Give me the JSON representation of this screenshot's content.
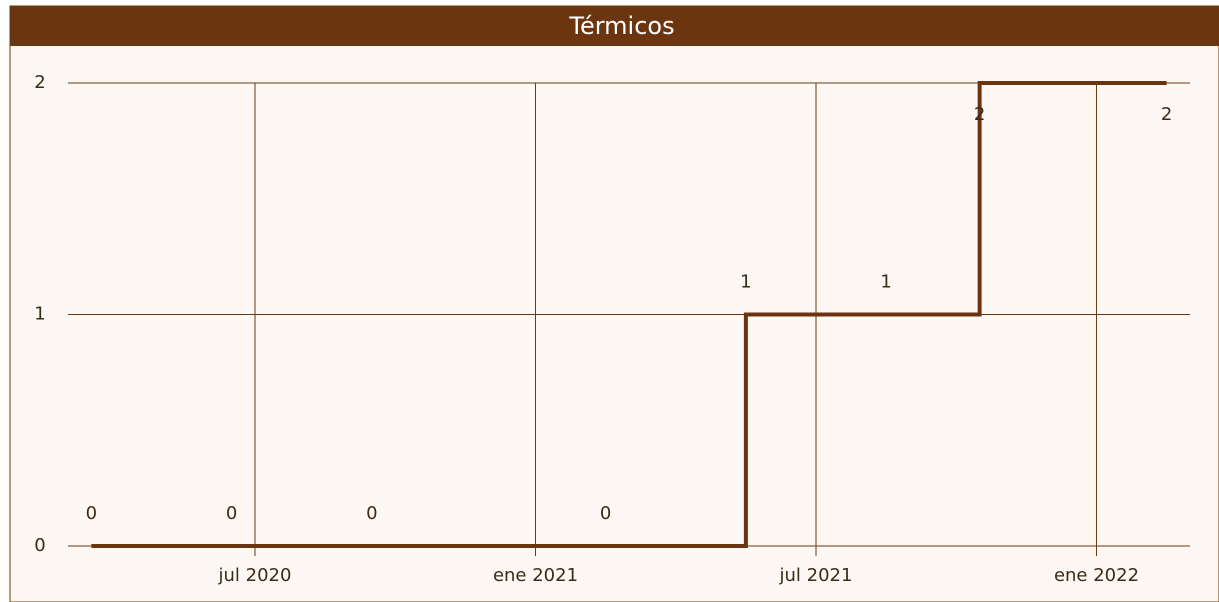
{
  "chart_data": {
    "type": "step",
    "title": "Térmicos",
    "x": [
      "2020-03",
      "2020-06",
      "2020-09",
      "2021-02",
      "2021-05",
      "2021-08",
      "2021-10",
      "2022-02"
    ],
    "values": [
      0,
      0,
      0,
      0,
      1,
      1,
      2,
      2
    ],
    "color": "#6b3410",
    "xlim": [
      "2020-03",
      "2022-03"
    ],
    "xticks": [
      {
        "value": "2020-07",
        "label": "jul 2020"
      },
      {
        "value": "2021-01",
        "label": "ene 2021"
      },
      {
        "value": "2021-07",
        "label": "jul 2021"
      },
      {
        "value": "2022-01",
        "label": "ene 2022"
      }
    ],
    "ylim": [
      0,
      2
    ],
    "yticks": [
      0,
      1,
      2
    ],
    "grid": true
  }
}
